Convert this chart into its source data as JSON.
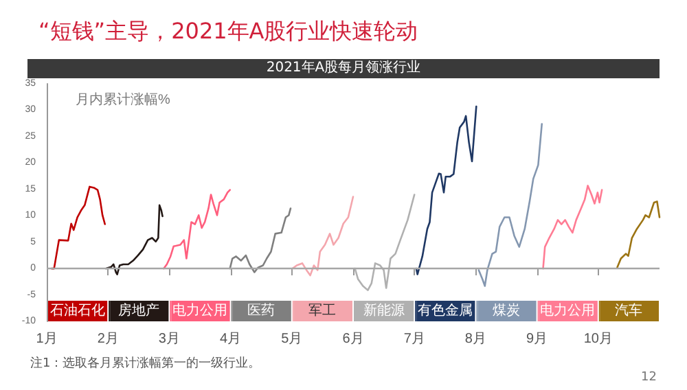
{
  "chart_data": {
    "type": "line",
    "title": "“短钱”主导，2021年A股行业快速轮动",
    "subtitle": "2021年A股每月领涨行业",
    "ylabel": "月内累计涨幅%",
    "annotations": [
      "注1：选取各月累计涨幅第一的一级行业。",
      "12"
    ],
    "xlim": [
      1,
      11
    ],
    "xticks": [
      {
        "value": 1,
        "label": "1月"
      },
      {
        "value": 2,
        "label": "2月"
      },
      {
        "value": 3,
        "label": "3月"
      },
      {
        "value": 4,
        "label": "4月"
      },
      {
        "value": 5,
        "label": "5月"
      },
      {
        "value": 6,
        "label": "6月"
      },
      {
        "value": 7,
        "label": "7月"
      },
      {
        "value": 8,
        "label": "8月"
      },
      {
        "value": 9,
        "label": "9月"
      },
      {
        "value": 10,
        "label": "10月"
      }
    ],
    "ylim": [
      -10,
      35
    ],
    "yticks": [
      -10,
      -5,
      0,
      5,
      10,
      15,
      20,
      25,
      30,
      35
    ],
    "grid": false,
    "legend": "bottom",
    "marker": "none",
    "line_style": "solid",
    "ref_lines": [
      {
        "axis": "y",
        "value": 0,
        "color": "#a6a6a6"
      }
    ],
    "series": [
      {
        "name": "石油石化",
        "color": "#c00000",
        "x": [
          1.08,
          1.12,
          1.2,
          1.35,
          1.4,
          1.44,
          1.5,
          1.56,
          1.62,
          1.7,
          1.77,
          1.83,
          1.87,
          1.91,
          1.95
        ],
        "values": [
          0,
          0,
          5.4,
          5.3,
          8.5,
          7.3,
          9.7,
          11,
          12,
          15.5,
          15.3,
          14.9,
          13.1,
          10.1,
          8.4
        ]
      },
      {
        "name": "房地产",
        "color": "#231815",
        "x": [
          1.97,
          2.05,
          2.09,
          2.13,
          2.15,
          2.19,
          2.25,
          2.33,
          2.41,
          2.49,
          2.57,
          2.65,
          2.72,
          2.78,
          2.82,
          2.84,
          2.87,
          2.89
        ],
        "values": [
          0,
          0.3,
          0.8,
          -0.7,
          -1.1,
          0.6,
          0.8,
          0.8,
          1.5,
          2.5,
          3.6,
          5.4,
          5.8,
          5.1,
          5.8,
          12,
          11,
          9.9
        ]
      },
      {
        "name": "电力公用",
        "color": "#ff5f7e",
        "x": [
          2.91,
          2.96,
          3.02,
          3.07,
          3.18,
          3.24,
          3.28,
          3.36,
          3.42,
          3.48,
          3.53,
          3.58,
          3.64,
          3.68,
          3.72,
          3.78,
          3.82,
          3.89,
          3.95,
          3.99
        ],
        "values": [
          0,
          0.8,
          2.3,
          4.2,
          4.5,
          5.4,
          1.9,
          8.8,
          8.4,
          10.1,
          7.7,
          8.8,
          11.4,
          14,
          12.3,
          10.1,
          12.5,
          13.1,
          14.4,
          14.9
        ]
      },
      {
        "name": "医药",
        "color": "#7f7f7f",
        "x": [
          3.99,
          4.03,
          4.09,
          4.17,
          4.25,
          4.31,
          4.39,
          4.45,
          4.53,
          4.59,
          4.66,
          4.73,
          4.83,
          4.9,
          4.95,
          4.98
        ],
        "values": [
          0,
          1.9,
          2.3,
          1.5,
          2.5,
          0.8,
          -0.7,
          0.2,
          0.6,
          1.9,
          3.2,
          6.6,
          6.8,
          9.7,
          10.1,
          11.4
        ]
      },
      {
        "name": "军工",
        "color": "#f4a6ad",
        "x": [
          5.01,
          5.08,
          5.17,
          5.24,
          5.3,
          5.36,
          5.42,
          5.46,
          5.54,
          5.62,
          5.68,
          5.76,
          5.84,
          5.92,
          6.0
        ],
        "values": [
          0,
          0.6,
          1,
          -0.3,
          -1.3,
          0.6,
          -0.3,
          3.2,
          4.5,
          6.6,
          4.5,
          5.8,
          8.5,
          9.7,
          13.6
        ]
      },
      {
        "name": "新能源",
        "color": "#b0b0b0",
        "x": [
          6.03,
          6.08,
          6.16,
          6.24,
          6.3,
          6.36,
          6.44,
          6.5,
          6.54,
          6.61,
          6.69,
          6.77,
          6.89,
          7.0
        ],
        "values": [
          0,
          -2,
          -3.3,
          -4.1,
          -2.8,
          1,
          0.6,
          -0.3,
          -3.7,
          1.9,
          2.8,
          5.4,
          9.2,
          14
        ]
      },
      {
        "name": "有色金属",
        "color": "#1f3864",
        "x": [
          7.03,
          7.05,
          7.13,
          7.21,
          7.25,
          7.29,
          7.33,
          7.4,
          7.43,
          7.48,
          7.51,
          7.58,
          7.64,
          7.7,
          7.74,
          7.81,
          7.84,
          7.89,
          7.94,
          8.01
        ],
        "values": [
          0,
          -1.1,
          2.3,
          7.5,
          8.8,
          14.4,
          15.7,
          18,
          17.9,
          14.4,
          17.4,
          17.4,
          17.9,
          23.9,
          26.7,
          27.8,
          28.9,
          23.9,
          20.3,
          30.7
        ]
      },
      {
        "name": "煤炭",
        "color": "#8497b0",
        "x": [
          8.05,
          8.11,
          8.15,
          8.19,
          8.27,
          8.33,
          8.39,
          8.47,
          8.55,
          8.63,
          8.71,
          8.8,
          8.88,
          8.94,
          9.02,
          9.08
        ],
        "values": [
          -0.3,
          -2,
          -3.3,
          -0.3,
          2.8,
          3.2,
          7.9,
          9.7,
          9.7,
          6.2,
          4.1,
          7.5,
          12.7,
          17,
          19.6,
          27.4
        ]
      },
      {
        "name": "电力公用",
        "color": "#ff7c94",
        "x": [
          9.1,
          9.13,
          9.2,
          9.28,
          9.34,
          9.4,
          9.46,
          9.52,
          9.58,
          9.64,
          9.72,
          9.78,
          9.83,
          9.89,
          9.94,
          9.99,
          10.02,
          10.06
        ],
        "values": [
          0,
          4.1,
          5.8,
          7.5,
          9.2,
          8.4,
          9.2,
          7.9,
          6.8,
          9.2,
          11.4,
          13.1,
          15.7,
          14,
          12.3,
          14.4,
          12.5,
          14.9
        ]
      },
      {
        "name": "汽车",
        "color": "#9c7413",
        "x": [
          10.31,
          10.37,
          10.45,
          10.49,
          10.55,
          10.63,
          10.73,
          10.77,
          10.83,
          10.91,
          10.96,
          11.0
        ],
        "values": [
          0.2,
          1.9,
          2.8,
          2.4,
          5.8,
          7.5,
          9.2,
          10.1,
          9.7,
          12.5,
          12.7,
          9.7
        ]
      }
    ]
  }
}
